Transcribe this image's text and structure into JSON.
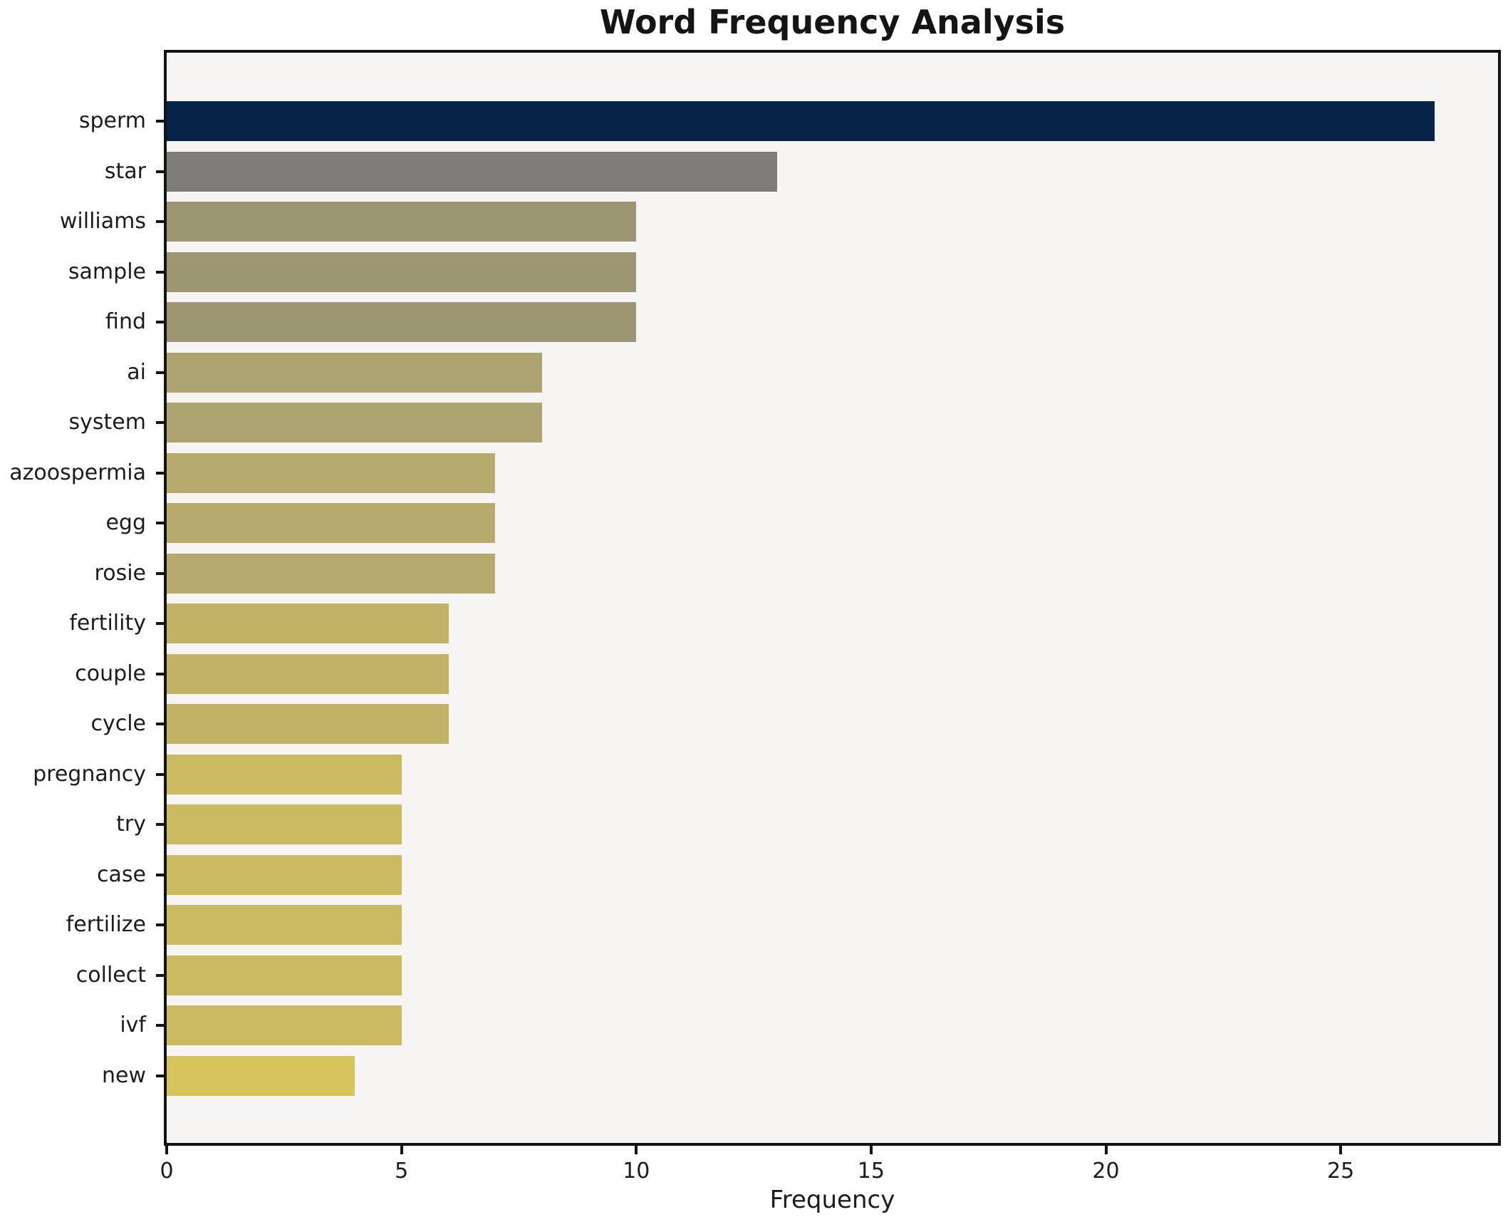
{
  "chart_data": {
    "type": "bar",
    "orientation": "horizontal",
    "title": "Word Frequency Analysis",
    "xlabel": "Frequency",
    "ylabel": "",
    "categories": [
      "sperm",
      "star",
      "williams",
      "sample",
      "find",
      "ai",
      "system",
      "azoospermia",
      "egg",
      "rosie",
      "fertility",
      "couple",
      "cycle",
      "pregnancy",
      "try",
      "case",
      "fertilize",
      "collect",
      "ivf",
      "new"
    ],
    "values": [
      27,
      13,
      10,
      10,
      10,
      8,
      8,
      7,
      7,
      7,
      6,
      6,
      6,
      5,
      5,
      5,
      5,
      5,
      5,
      4
    ],
    "bar_colors": [
      "#062348",
      "#7e7d77",
      "#9c9672",
      "#9c9672",
      "#9c9672",
      "#ada371",
      "#ada371",
      "#b6ab6c",
      "#b6ab6c",
      "#b6ab6c",
      "#c2b266",
      "#c2b266",
      "#c2b266",
      "#ccba60",
      "#ccba60",
      "#ccba60",
      "#ccba60",
      "#ccba60",
      "#ccba60",
      "#d7c45c"
    ],
    "xticks": [
      0,
      5,
      10,
      15,
      20,
      25
    ],
    "xlim": [
      0,
      28.35
    ],
    "grid": false,
    "legend": false,
    "plot_bg": "#f6f5f3",
    "fig_bg": "#ffffff",
    "spine_color": "#141414"
  }
}
